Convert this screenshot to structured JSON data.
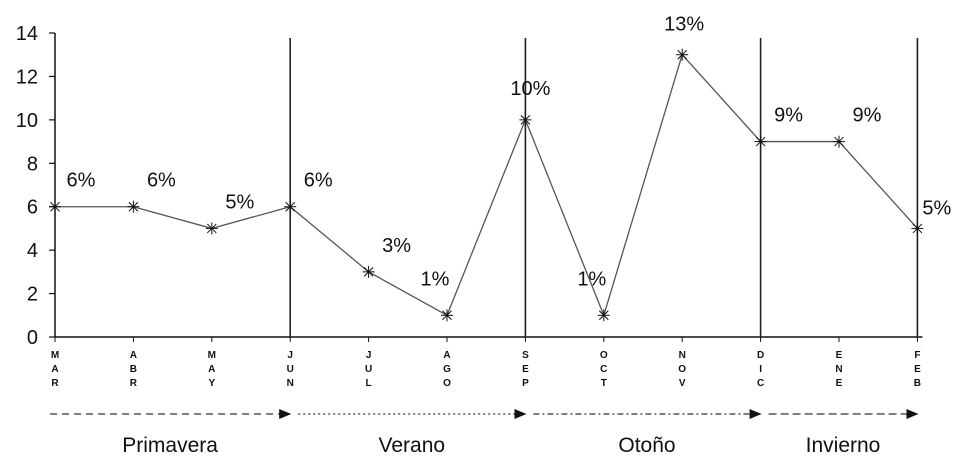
{
  "chart_data": {
    "type": "line",
    "title": "",
    "xlabel": "",
    "ylabel": "",
    "categories": [
      "MAR",
      "ABR",
      "MAY",
      "JUN",
      "JUL",
      "AGO",
      "SEP",
      "OCT",
      "NOV",
      "DIC",
      "ENE",
      "FEB"
    ],
    "values": [
      6,
      6,
      5,
      6,
      3,
      1,
      10,
      1,
      13,
      9,
      9,
      5
    ],
    "data_labels": [
      "6%",
      "6%",
      "5%",
      "6%",
      "3%",
      "1%",
      "10%",
      "1%",
      "13%",
      "9%",
      "9%",
      "5%"
    ],
    "ylim": [
      0,
      14
    ],
    "yticks": [
      "0",
      "2",
      "4",
      "6",
      "8",
      "10",
      "12",
      "14"
    ],
    "grid": false,
    "marker": "asterisk",
    "line_color": "#555555",
    "season_dividers_at": [
      "JUN",
      "SEP",
      "DIC",
      "FEB"
    ],
    "seasons": [
      {
        "label": "Primavera",
        "from": "MAR",
        "to": "JUN"
      },
      {
        "label": "Verano",
        "from": "JUN",
        "to": "SEP"
      },
      {
        "label": "Otoño",
        "from": "SEP",
        "to": "DIC"
      },
      {
        "label": "Invierno",
        "from": "DIC",
        "to": "FEB"
      }
    ]
  }
}
